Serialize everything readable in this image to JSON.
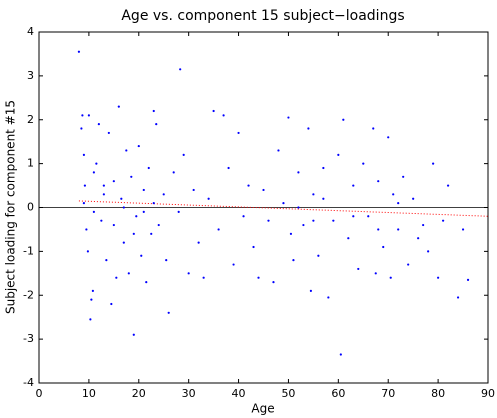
{
  "chart_data": {
    "type": "scatter",
    "title": "Age vs. component 15 subject−loadings",
    "x_label": "Age",
    "y_label": "Subject loading for component #15",
    "xlim": [
      0,
      90
    ],
    "ylim": [
      -4,
      4
    ],
    "xticks": [
      0,
      10,
      20,
      30,
      40,
      50,
      60,
      70,
      80,
      90
    ],
    "yticks": [
      -4,
      -3,
      -2,
      -1,
      0,
      1,
      2,
      3,
      4
    ],
    "grid": false,
    "hline": 0,
    "trend": {
      "x": [
        8,
        90
      ],
      "y": [
        0.15,
        -0.2
      ],
      "color": "#ff0000"
    },
    "series": [
      {
        "color": "#0000ff",
        "x": [
          8,
          8.5,
          8.7,
          9,
          9.2,
          9.5,
          9.8,
          10,
          10.3,
          10.5,
          10.8,
          11,
          11.5,
          12,
          12.5,
          13,
          13.5,
          14,
          14.5,
          15,
          15.5,
          16,
          16.5,
          17,
          17.5,
          18,
          18.5,
          19,
          19.5,
          20,
          20.5,
          21,
          21.5,
          22,
          22.5,
          23,
          23.5,
          24,
          25,
          25.5,
          26,
          27,
          28,
          28.3,
          29,
          30,
          31,
          32,
          33,
          34,
          35,
          36,
          37,
          38,
          39,
          40,
          41,
          42,
          43,
          44,
          45,
          46,
          47,
          48,
          49,
          50,
          50.5,
          51,
          52,
          53,
          54,
          54.5,
          55,
          56,
          57,
          58,
          59,
          60,
          60.5,
          61,
          62,
          63,
          64,
          65,
          66,
          67,
          67.5,
          68,
          69,
          70,
          70.5,
          71,
          72,
          73,
          74,
          75,
          77,
          78,
          79,
          80,
          81,
          82,
          84,
          85,
          86,
          9,
          11,
          13,
          15,
          17,
          19,
          21,
          23,
          52,
          55,
          57,
          63,
          68,
          72,
          76
        ],
        "values": [
          3.55,
          1.8,
          2.1,
          1.2,
          0.5,
          -0.5,
          -1,
          2.1,
          -2.55,
          -2.1,
          -1.9,
          0.8,
          1.0,
          1.9,
          -0.3,
          0.3,
          -1.2,
          1.7,
          -2.2,
          0.6,
          -1.6,
          2.3,
          0.2,
          -0.8,
          1.3,
          -1.5,
          0.7,
          -2.9,
          -0.2,
          1.4,
          -1.1,
          0.4,
          -1.7,
          0.9,
          -0.6,
          2.2,
          1.9,
          -0.4,
          0.3,
          -1.2,
          -2.4,
          0.8,
          -0.1,
          3.15,
          1.2,
          -1.5,
          0.4,
          -0.8,
          -1.6,
          0.2,
          2.2,
          -0.5,
          2.1,
          0.9,
          -1.3,
          1.7,
          -0.2,
          0.5,
          -0.9,
          -1.6,
          0.4,
          -0.3,
          -1.7,
          1.3,
          0.1,
          2.05,
          -0.6,
          -1.2,
          0.8,
          -0.4,
          1.8,
          -1.9,
          0.3,
          -1.1,
          0.9,
          -2.05,
          -0.3,
          1.2,
          -3.35,
          2.0,
          -0.7,
          0.5,
          -1.4,
          1.0,
          -0.2,
          1.8,
          -1.5,
          0.6,
          -0.9,
          1.6,
          -1.6,
          0.3,
          -0.5,
          0.7,
          -1.3,
          0.2,
          -0.4,
          -1.0,
          1.0,
          -1.6,
          -0.3,
          0.5,
          -2.05,
          -0.5,
          -1.65,
          0.1,
          -0.1,
          0.5,
          -0.4,
          0.0,
          -0.6,
          -0.1,
          0.1,
          0.0,
          -0.3,
          0.2,
          -0.2,
          -0.5,
          0.1,
          -0.7
        ]
      }
    ]
  }
}
